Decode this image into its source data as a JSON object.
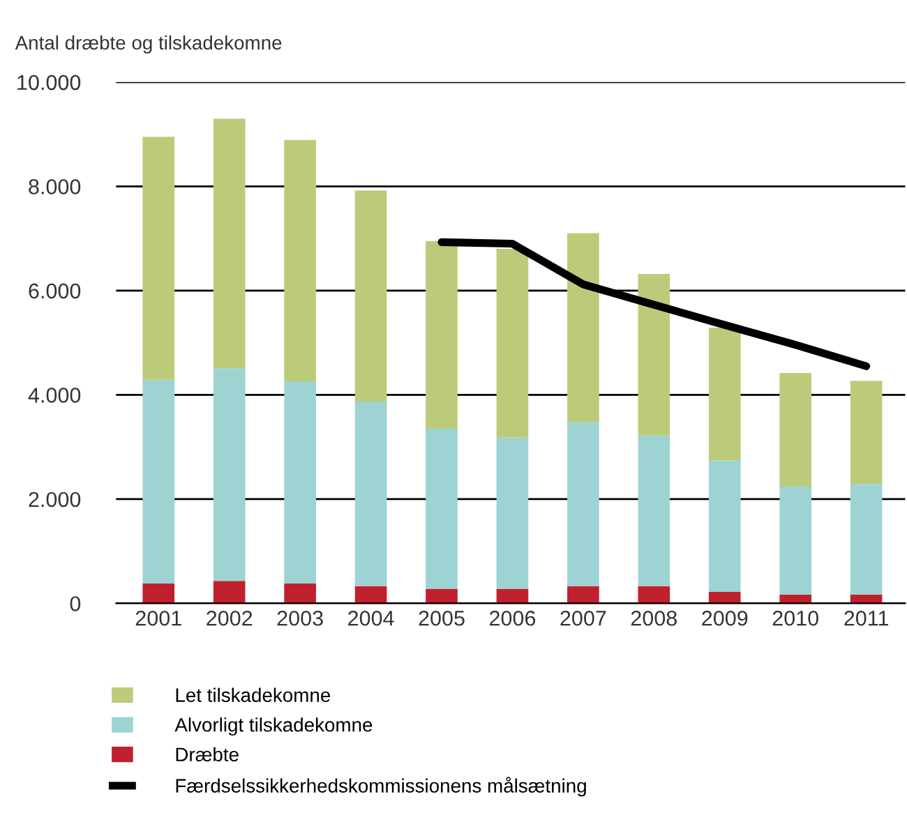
{
  "chart_data": {
    "type": "bar",
    "stacked": true,
    "ylabel": "Antal dræbte og tilskadekomne",
    "categories": [
      "2001",
      "2002",
      "2003",
      "2004",
      "2005",
      "2006",
      "2007",
      "2008",
      "2009",
      "2010",
      "2011"
    ],
    "series": [
      {
        "name": "Dræbte",
        "color": "#c0202e",
        "values": [
          380,
          430,
          380,
          330,
          280,
          280,
          330,
          330,
          220,
          170,
          170
        ]
      },
      {
        "name": "Alvorligt tilskadekomne",
        "color": "#9dd3d3",
        "values": [
          3910,
          4080,
          3880,
          3540,
          3070,
          2900,
          3150,
          2890,
          2520,
          2070,
          2120
        ]
      },
      {
        "name": "Let tilskadekomne",
        "color": "#bccb7a",
        "values": [
          4660,
          4790,
          4630,
          4050,
          3600,
          3620,
          3620,
          3100,
          2550,
          2180,
          1980
        ]
      },
      {
        "name": "Færdselssikkerhedskommissionens målsætning",
        "color": "#000000",
        "type": "line",
        "values": [
          null,
          null,
          null,
          null,
          6930,
          6900,
          6120,
          5730,
          5340,
          4960,
          4550
        ]
      }
    ],
    "ylim": [
      0,
      10000
    ],
    "yticks": [
      {
        "value": 0,
        "label": "0"
      },
      {
        "value": 2000,
        "label": "2.000"
      },
      {
        "value": 4000,
        "label": "4.000"
      },
      {
        "value": 6000,
        "label": "6.000"
      },
      {
        "value": 8000,
        "label": "8.000"
      },
      {
        "value": 10000,
        "label": "10.000"
      }
    ],
    "grid": "y",
    "legend": "bottom"
  }
}
